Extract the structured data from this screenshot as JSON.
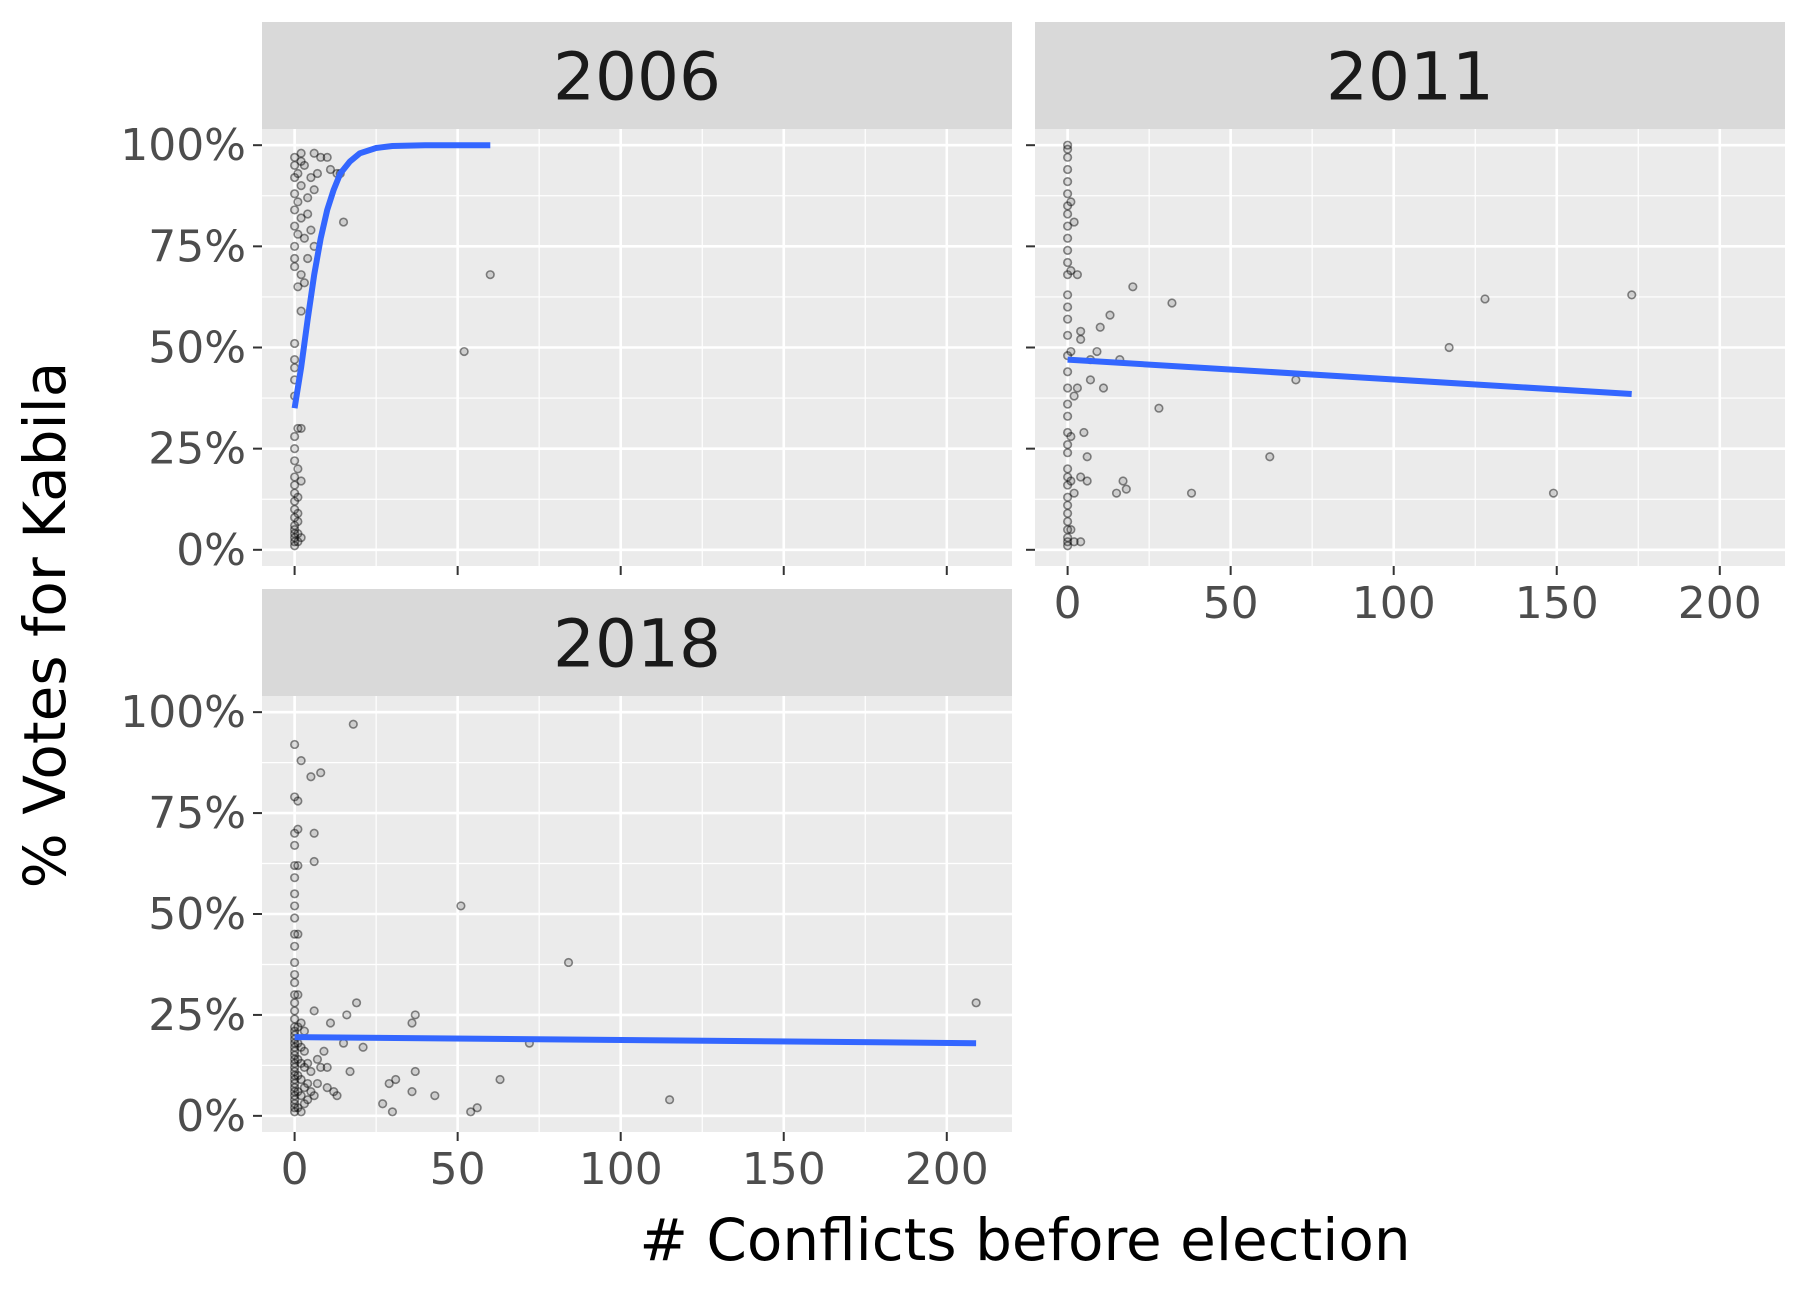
{
  "chart_data": {
    "type": "scatter",
    "xlabel": "# Conflicts before election",
    "ylabel": "% Votes for Kabila",
    "x_ticks": [
      "0",
      "50",
      "100",
      "150",
      "200"
    ],
    "x_tick_values": [
      0,
      50,
      100,
      150,
      200
    ],
    "xlim": [
      -10,
      220
    ],
    "y_ticks": [
      "0%",
      "25%",
      "50%",
      "75%",
      "100%"
    ],
    "y_tick_values": [
      0,
      25,
      50,
      75,
      100
    ],
    "ylim": [
      -4,
      104
    ],
    "grid": true,
    "legend": "none",
    "colors": {
      "panel_bg": "#ebebeb",
      "strip_bg": "#d9d9d9",
      "grid": "#ffffff",
      "point": "#000000",
      "fit_line": "#3366ff"
    },
    "panels": [
      {
        "title": "2006",
        "points": [
          {
            "x": 0,
            "y": 1
          },
          {
            "x": 0,
            "y": 2
          },
          {
            "x": 0,
            "y": 3
          },
          {
            "x": 0,
            "y": 4
          },
          {
            "x": 0,
            "y": 5
          },
          {
            "x": 0,
            "y": 6
          },
          {
            "x": 0,
            "y": 8
          },
          {
            "x": 0,
            "y": 10
          },
          {
            "x": 0,
            "y": 12
          },
          {
            "x": 0,
            "y": 14
          },
          {
            "x": 0,
            "y": 16
          },
          {
            "x": 0,
            "y": 18
          },
          {
            "x": 0,
            "y": 22
          },
          {
            "x": 0,
            "y": 25
          },
          {
            "x": 0,
            "y": 28
          },
          {
            "x": 0,
            "y": 38
          },
          {
            "x": 0,
            "y": 42
          },
          {
            "x": 0,
            "y": 45
          },
          {
            "x": 0,
            "y": 47
          },
          {
            "x": 0,
            "y": 51
          },
          {
            "x": 0,
            "y": 70
          },
          {
            "x": 0,
            "y": 72
          },
          {
            "x": 0,
            "y": 75
          },
          {
            "x": 0,
            "y": 80
          },
          {
            "x": 0,
            "y": 84
          },
          {
            "x": 0,
            "y": 88
          },
          {
            "x": 0,
            "y": 92
          },
          {
            "x": 0,
            "y": 95
          },
          {
            "x": 0,
            "y": 97
          },
          {
            "x": 1,
            "y": 2
          },
          {
            "x": 1,
            "y": 4
          },
          {
            "x": 1,
            "y": 7
          },
          {
            "x": 1,
            "y": 9
          },
          {
            "x": 1,
            "y": 13
          },
          {
            "x": 1,
            "y": 20
          },
          {
            "x": 1,
            "y": 30
          },
          {
            "x": 1,
            "y": 65
          },
          {
            "x": 1,
            "y": 78
          },
          {
            "x": 1,
            "y": 86
          },
          {
            "x": 1,
            "y": 93
          },
          {
            "x": 2,
            "y": 3
          },
          {
            "x": 2,
            "y": 17
          },
          {
            "x": 2,
            "y": 30
          },
          {
            "x": 2,
            "y": 59
          },
          {
            "x": 2,
            "y": 68
          },
          {
            "x": 2,
            "y": 82
          },
          {
            "x": 2,
            "y": 90
          },
          {
            "x": 2,
            "y": 96
          },
          {
            "x": 2,
            "y": 98
          },
          {
            "x": 3,
            "y": 66
          },
          {
            "x": 3,
            "y": 77
          },
          {
            "x": 3,
            "y": 95
          },
          {
            "x": 4,
            "y": 72
          },
          {
            "x": 4,
            "y": 83
          },
          {
            "x": 4,
            "y": 87
          },
          {
            "x": 5,
            "y": 79
          },
          {
            "x": 5,
            "y": 92
          },
          {
            "x": 6,
            "y": 75
          },
          {
            "x": 6,
            "y": 89
          },
          {
            "x": 6,
            "y": 98
          },
          {
            "x": 7,
            "y": 93
          },
          {
            "x": 8,
            "y": 97
          },
          {
            "x": 10,
            "y": 97
          },
          {
            "x": 11,
            "y": 94
          },
          {
            "x": 13,
            "y": 93
          },
          {
            "x": 14,
            "y": 93
          },
          {
            "x": 15,
            "y": 81
          },
          {
            "x": 52,
            "y": 49
          },
          {
            "x": 60,
            "y": 68
          }
        ],
        "fit": [
          {
            "x": 0,
            "y": 35
          },
          {
            "x": 2,
            "y": 45
          },
          {
            "x": 4,
            "y": 57
          },
          {
            "x": 6,
            "y": 68
          },
          {
            "x": 8,
            "y": 77
          },
          {
            "x": 10,
            "y": 84
          },
          {
            "x": 12,
            "y": 89
          },
          {
            "x": 14,
            "y": 93
          },
          {
            "x": 17,
            "y": 96
          },
          {
            "x": 20,
            "y": 98
          },
          {
            "x": 25,
            "y": 99.3
          },
          {
            "x": 30,
            "y": 99.8
          },
          {
            "x": 40,
            "y": 100
          },
          {
            "x": 60,
            "y": 100
          }
        ]
      },
      {
        "title": "2011",
        "points": [
          {
            "x": 0,
            "y": 1
          },
          {
            "x": 0,
            "y": 2
          },
          {
            "x": 0,
            "y": 3
          },
          {
            "x": 0,
            "y": 5
          },
          {
            "x": 0,
            "y": 7
          },
          {
            "x": 0,
            "y": 9
          },
          {
            "x": 0,
            "y": 11
          },
          {
            "x": 0,
            "y": 13
          },
          {
            "x": 0,
            "y": 16
          },
          {
            "x": 0,
            "y": 18
          },
          {
            "x": 0,
            "y": 20
          },
          {
            "x": 0,
            "y": 24
          },
          {
            "x": 0,
            "y": 26
          },
          {
            "x": 0,
            "y": 29
          },
          {
            "x": 0,
            "y": 33
          },
          {
            "x": 0,
            "y": 36
          },
          {
            "x": 0,
            "y": 40
          },
          {
            "x": 0,
            "y": 44
          },
          {
            "x": 0,
            "y": 48
          },
          {
            "x": 0,
            "y": 53
          },
          {
            "x": 0,
            "y": 57
          },
          {
            "x": 0,
            "y": 60
          },
          {
            "x": 0,
            "y": 63
          },
          {
            "x": 0,
            "y": 68
          },
          {
            "x": 0,
            "y": 71
          },
          {
            "x": 0,
            "y": 74
          },
          {
            "x": 0,
            "y": 77
          },
          {
            "x": 0,
            "y": 80
          },
          {
            "x": 0,
            "y": 83
          },
          {
            "x": 0,
            "y": 85
          },
          {
            "x": 0,
            "y": 88
          },
          {
            "x": 0,
            "y": 91
          },
          {
            "x": 0,
            "y": 94
          },
          {
            "x": 0,
            "y": 97
          },
          {
            "x": 0,
            "y": 99
          },
          {
            "x": 0,
            "y": 100
          },
          {
            "x": 1,
            "y": 5
          },
          {
            "x": 1,
            "y": 17
          },
          {
            "x": 1,
            "y": 28
          },
          {
            "x": 1,
            "y": 49
          },
          {
            "x": 1,
            "y": 69
          },
          {
            "x": 1,
            "y": 86
          },
          {
            "x": 2,
            "y": 2
          },
          {
            "x": 2,
            "y": 14
          },
          {
            "x": 2,
            "y": 38
          },
          {
            "x": 2,
            "y": 81
          },
          {
            "x": 3,
            "y": 40
          },
          {
            "x": 3,
            "y": 68
          },
          {
            "x": 4,
            "y": 2
          },
          {
            "x": 4,
            "y": 18
          },
          {
            "x": 4,
            "y": 52
          },
          {
            "x": 4,
            "y": 54
          },
          {
            "x": 5,
            "y": 29
          },
          {
            "x": 6,
            "y": 23
          },
          {
            "x": 6,
            "y": 17
          },
          {
            "x": 7,
            "y": 47
          },
          {
            "x": 7,
            "y": 42
          },
          {
            "x": 9,
            "y": 49
          },
          {
            "x": 10,
            "y": 55
          },
          {
            "x": 11,
            "y": 40
          },
          {
            "x": 13,
            "y": 58
          },
          {
            "x": 15,
            "y": 14
          },
          {
            "x": 16,
            "y": 47
          },
          {
            "x": 17,
            "y": 17
          },
          {
            "x": 18,
            "y": 15
          },
          {
            "x": 20,
            "y": 65
          },
          {
            "x": 28,
            "y": 35
          },
          {
            "x": 32,
            "y": 61
          },
          {
            "x": 38,
            "y": 14
          },
          {
            "x": 62,
            "y": 23
          },
          {
            "x": 70,
            "y": 42
          },
          {
            "x": 117,
            "y": 50
          },
          {
            "x": 128,
            "y": 62
          },
          {
            "x": 149,
            "y": 14
          },
          {
            "x": 173,
            "y": 63
          }
        ],
        "fit": [
          {
            "x": 0,
            "y": 47
          },
          {
            "x": 173,
            "y": 38.5
          }
        ]
      },
      {
        "title": "2018",
        "points": [
          {
            "x": 0,
            "y": 1
          },
          {
            "x": 0,
            "y": 2
          },
          {
            "x": 0,
            "y": 3
          },
          {
            "x": 0,
            "y": 4
          },
          {
            "x": 0,
            "y": 5
          },
          {
            "x": 0,
            "y": 6
          },
          {
            "x": 0,
            "y": 7
          },
          {
            "x": 0,
            "y": 8
          },
          {
            "x": 0,
            "y": 9
          },
          {
            "x": 0,
            "y": 10
          },
          {
            "x": 0,
            "y": 11
          },
          {
            "x": 0,
            "y": 12
          },
          {
            "x": 0,
            "y": 13
          },
          {
            "x": 0,
            "y": 14
          },
          {
            "x": 0,
            "y": 15
          },
          {
            "x": 0,
            "y": 16
          },
          {
            "x": 0,
            "y": 17
          },
          {
            "x": 0,
            "y": 18
          },
          {
            "x": 0,
            "y": 19
          },
          {
            "x": 0,
            "y": 20
          },
          {
            "x": 0,
            "y": 21
          },
          {
            "x": 0,
            "y": 22
          },
          {
            "x": 0,
            "y": 24
          },
          {
            "x": 0,
            "y": 26
          },
          {
            "x": 0,
            "y": 28
          },
          {
            "x": 0,
            "y": 30
          },
          {
            "x": 0,
            "y": 33
          },
          {
            "x": 0,
            "y": 35
          },
          {
            "x": 0,
            "y": 38
          },
          {
            "x": 0,
            "y": 42
          },
          {
            "x": 0,
            "y": 45
          },
          {
            "x": 0,
            "y": 49
          },
          {
            "x": 0,
            "y": 52
          },
          {
            "x": 0,
            "y": 55
          },
          {
            "x": 0,
            "y": 59
          },
          {
            "x": 0,
            "y": 62
          },
          {
            "x": 0,
            "y": 67
          },
          {
            "x": 0,
            "y": 70
          },
          {
            "x": 0,
            "y": 79
          },
          {
            "x": 0,
            "y": 92
          },
          {
            "x": 1,
            "y": 2
          },
          {
            "x": 1,
            "y": 6
          },
          {
            "x": 1,
            "y": 10
          },
          {
            "x": 1,
            "y": 14
          },
          {
            "x": 1,
            "y": 18
          },
          {
            "x": 1,
            "y": 22
          },
          {
            "x": 1,
            "y": 30
          },
          {
            "x": 1,
            "y": 45
          },
          {
            "x": 1,
            "y": 62
          },
          {
            "x": 1,
            "y": 71
          },
          {
            "x": 1,
            "y": 78
          },
          {
            "x": 2,
            "y": 1
          },
          {
            "x": 2,
            "y": 5
          },
          {
            "x": 2,
            "y": 9
          },
          {
            "x": 2,
            "y": 13
          },
          {
            "x": 2,
            "y": 17
          },
          {
            "x": 2,
            "y": 23
          },
          {
            "x": 2,
            "y": 88
          },
          {
            "x": 3,
            "y": 3
          },
          {
            "x": 3,
            "y": 7
          },
          {
            "x": 3,
            "y": 12
          },
          {
            "x": 3,
            "y": 16
          },
          {
            "x": 3,
            "y": 21
          },
          {
            "x": 4,
            "y": 4
          },
          {
            "x": 4,
            "y": 8
          },
          {
            "x": 4,
            "y": 13
          },
          {
            "x": 5,
            "y": 6
          },
          {
            "x": 5,
            "y": 11
          },
          {
            "x": 5,
            "y": 84
          },
          {
            "x": 6,
            "y": 5
          },
          {
            "x": 6,
            "y": 26
          },
          {
            "x": 6,
            "y": 63
          },
          {
            "x": 6,
            "y": 70
          },
          {
            "x": 7,
            "y": 8
          },
          {
            "x": 7,
            "y": 14
          },
          {
            "x": 8,
            "y": 12
          },
          {
            "x": 8,
            "y": 85
          },
          {
            "x": 9,
            "y": 16
          },
          {
            "x": 10,
            "y": 7
          },
          {
            "x": 10,
            "y": 12
          },
          {
            "x": 11,
            "y": 23
          },
          {
            "x": 12,
            "y": 6
          },
          {
            "x": 13,
            "y": 5
          },
          {
            "x": 15,
            "y": 18
          },
          {
            "x": 16,
            "y": 25
          },
          {
            "x": 17,
            "y": 11
          },
          {
            "x": 18,
            "y": 97
          },
          {
            "x": 19,
            "y": 28
          },
          {
            "x": 21,
            "y": 17
          },
          {
            "x": 27,
            "y": 3
          },
          {
            "x": 29,
            "y": 8
          },
          {
            "x": 30,
            "y": 1
          },
          {
            "x": 31,
            "y": 9
          },
          {
            "x": 36,
            "y": 6
          },
          {
            "x": 36,
            "y": 23
          },
          {
            "x": 37,
            "y": 25
          },
          {
            "x": 37,
            "y": 11
          },
          {
            "x": 43,
            "y": 5
          },
          {
            "x": 51,
            "y": 52
          },
          {
            "x": 54,
            "y": 1
          },
          {
            "x": 56,
            "y": 2
          },
          {
            "x": 63,
            "y": 9
          },
          {
            "x": 72,
            "y": 18
          },
          {
            "x": 84,
            "y": 38
          },
          {
            "x": 115,
            "y": 4
          },
          {
            "x": 209,
            "y": 28
          }
        ],
        "fit": [
          {
            "x": 0,
            "y": 19.5
          },
          {
            "x": 209,
            "y": 18
          }
        ]
      }
    ]
  }
}
